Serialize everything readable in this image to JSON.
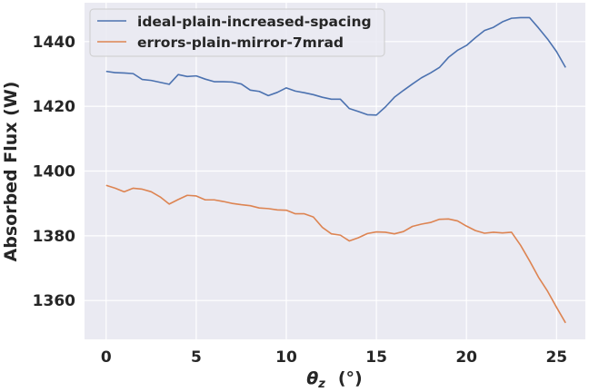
{
  "chart_data": {
    "type": "line",
    "xlabel_main": "θ",
    "xlabel_sub": "z",
    "xlabel_unit": "(°)",
    "ylabel": "Absorbed Flux (W)",
    "xlim": [
      -1.2,
      26.6
    ],
    "ylim": [
      1348,
      1452
    ],
    "xticks": [
      0,
      5,
      10,
      15,
      20,
      25
    ],
    "yticks": [
      1360,
      1380,
      1400,
      1420,
      1440
    ],
    "grid": true,
    "legend_position": "top-left",
    "background": "#eaeaf2",
    "x": [
      0,
      0.5,
      1,
      1.5,
      2,
      2.5,
      3,
      3.5,
      4,
      4.5,
      5,
      5.5,
      6,
      6.5,
      7,
      7.5,
      8,
      8.5,
      9,
      9.5,
      10,
      10.5,
      11,
      11.5,
      12,
      12.5,
      13,
      13.5,
      14,
      14.5,
      15,
      15.5,
      16,
      16.5,
      17,
      17.5,
      18,
      18.5,
      19,
      19.5,
      20,
      20.5,
      21,
      21.5,
      22,
      22.5,
      23,
      23.5,
      24,
      24.5,
      25,
      25.5
    ],
    "series": [
      {
        "name": "ideal-plain-increased-spacing",
        "color": "#4c72b0",
        "values": [
          1430.8,
          1430.4,
          1430.3,
          1430.1,
          1428.3,
          1428.0,
          1427.4,
          1426.8,
          1429.8,
          1429.2,
          1429.4,
          1428.4,
          1427.6,
          1427.6,
          1427.5,
          1426.9,
          1425.0,
          1424.6,
          1423.3,
          1424.3,
          1425.7,
          1424.7,
          1424.2,
          1423.6,
          1422.8,
          1422.2,
          1422.2,
          1419.3,
          1418.4,
          1417.4,
          1417.3,
          1419.8,
          1422.8,
          1424.9,
          1426.9,
          1428.8,
          1430.3,
          1432.0,
          1435.1,
          1437.3,
          1438.8,
          1441.2,
          1443.4,
          1444.4,
          1446.1,
          1447.2,
          1447.4,
          1447.4,
          1444.2,
          1440.8,
          1436.9,
          1432.0
        ]
      },
      {
        "name": "errors-plain-mirror-7mrad",
        "color": "#dd8452",
        "values": [
          1395.6,
          1394.7,
          1393.6,
          1394.7,
          1394.4,
          1393.6,
          1392.0,
          1389.8,
          1391.2,
          1392.5,
          1392.3,
          1391.1,
          1391.1,
          1390.6,
          1390.0,
          1389.6,
          1389.3,
          1388.6,
          1388.4,
          1388.0,
          1387.9,
          1386.8,
          1386.8,
          1385.8,
          1382.6,
          1380.6,
          1380.2,
          1378.4,
          1379.4,
          1380.7,
          1381.2,
          1381.1,
          1380.6,
          1381.3,
          1382.9,
          1383.6,
          1384.1,
          1385.1,
          1385.2,
          1384.6,
          1383.0,
          1381.6,
          1380.8,
          1381.1,
          1380.9,
          1381.1,
          1377.1,
          1372.3,
          1367.2,
          1362.9,
          1357.9,
          1353.1
        ]
      }
    ]
  }
}
